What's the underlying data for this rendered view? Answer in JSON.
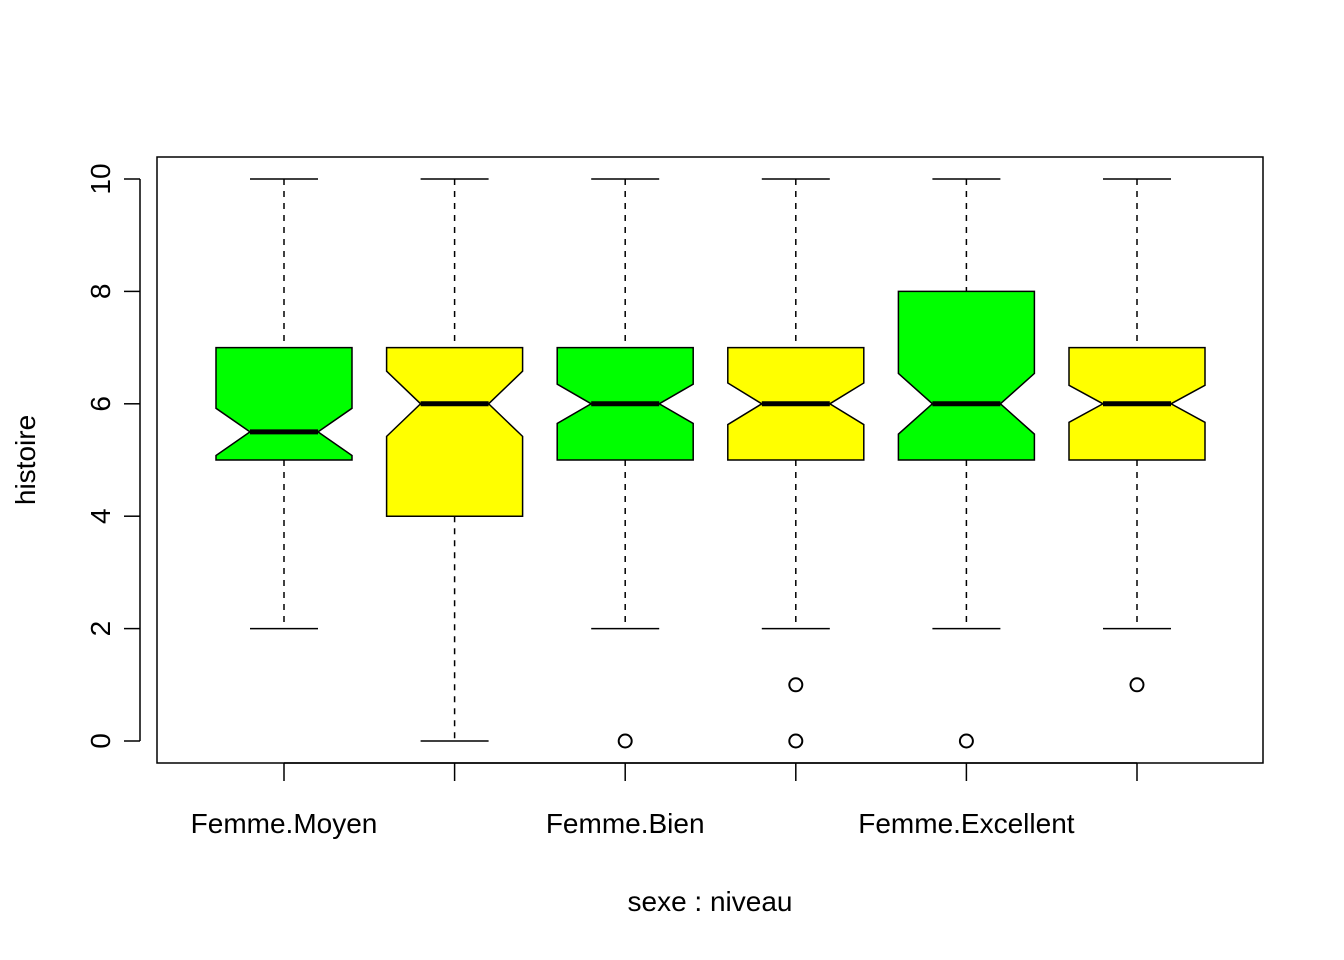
{
  "chart_data": {
    "type": "boxplot",
    "notched": true,
    "xlabel": "sexe : niveau",
    "ylabel": "histoire",
    "ylim": [
      0,
      10
    ],
    "yticks": [
      0,
      2,
      4,
      6,
      8,
      10
    ],
    "categories": [
      "Femme.Moyen",
      "",
      "Femme.Bien",
      "",
      "Femme.Excellent",
      ""
    ],
    "boxes": [
      {
        "fill": "#00ff00",
        "whisker_low": 2,
        "q1": 5,
        "median": 5.5,
        "q3": 7,
        "whisker_high": 10,
        "notch_low": 5.08,
        "notch_high": 5.92,
        "outliers": []
      },
      {
        "fill": "#ffff00",
        "whisker_low": 0,
        "q1": 4,
        "median": 6,
        "q3": 7,
        "whisker_high": 10,
        "notch_low": 5.42,
        "notch_high": 6.58,
        "outliers": []
      },
      {
        "fill": "#00ff00",
        "whisker_low": 2,
        "q1": 5,
        "median": 6,
        "q3": 7,
        "whisker_high": 10,
        "notch_low": 5.65,
        "notch_high": 6.35,
        "outliers": [
          0
        ]
      },
      {
        "fill": "#ffff00",
        "whisker_low": 2,
        "q1": 5,
        "median": 6,
        "q3": 7,
        "whisker_high": 10,
        "notch_low": 5.63,
        "notch_high": 6.37,
        "outliers": [
          1,
          0
        ]
      },
      {
        "fill": "#00ff00",
        "whisker_low": 2,
        "q1": 5,
        "median": 6,
        "q3": 8,
        "whisker_high": 10,
        "notch_low": 5.46,
        "notch_high": 6.54,
        "outliers": [
          0
        ]
      },
      {
        "fill": "#ffff00",
        "whisker_low": 2,
        "q1": 5,
        "median": 6,
        "q3": 7,
        "whisker_high": 10,
        "notch_low": 5.67,
        "notch_high": 6.33,
        "outliers": [
          1
        ]
      }
    ]
  }
}
